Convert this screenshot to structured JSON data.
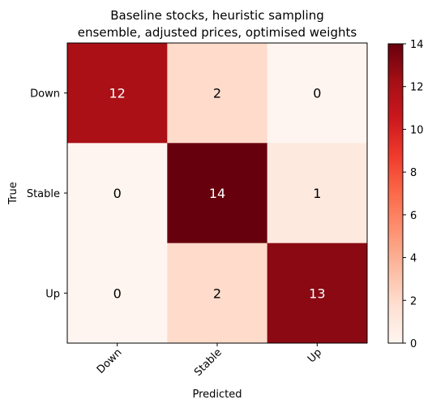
{
  "chart_data": {
    "type": "heatmap",
    "title_lines": [
      "Baseline stocks, heuristic sampling",
      "ensemble, adjusted prices, optimised weights"
    ],
    "xlabel": "Predicted",
    "ylabel": "True",
    "x_categories": [
      "Down",
      "Stable",
      "Up"
    ],
    "y_categories": [
      "Down",
      "Stable",
      "Up"
    ],
    "values": [
      [
        12,
        2,
        0
      ],
      [
        0,
        14,
        1
      ],
      [
        0,
        2,
        13
      ]
    ],
    "colorbar": {
      "min": 0,
      "max": 14,
      "ticks": [
        "0",
        "2",
        "4",
        "6",
        "8",
        "10",
        "12",
        "14"
      ],
      "colormap": "Reds"
    }
  }
}
